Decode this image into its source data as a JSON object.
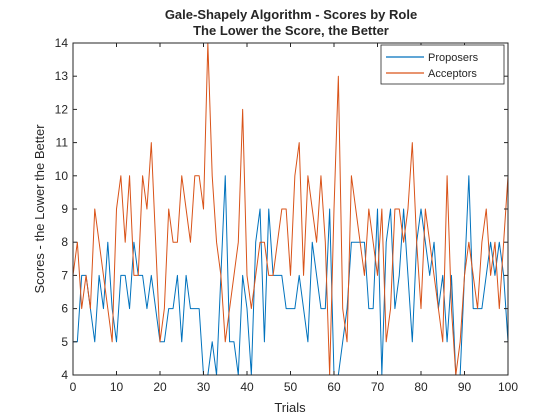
{
  "chart_data": {
    "type": "line",
    "title": "Gale-Shapely Algorithm - Scores by Role",
    "subtitle": "The Lower the Score, the Better",
    "xlabel": "Trials",
    "ylabel": "Scores - the Lower the Better",
    "xlim": [
      0,
      100
    ],
    "ylim": [
      4,
      14
    ],
    "xticks": [
      0,
      10,
      20,
      30,
      40,
      50,
      60,
      70,
      80,
      90,
      100
    ],
    "yticks": [
      4,
      5,
      6,
      7,
      8,
      9,
      10,
      11,
      12,
      13,
      14
    ],
    "grid": false,
    "legend_position": "top-right",
    "series": [
      {
        "name": "Proposers",
        "color": "#0072BD",
        "values": [
          5,
          5,
          7,
          7,
          6,
          5,
          7,
          6,
          8,
          6,
          5,
          7,
          7,
          6,
          8,
          7,
          7,
          6,
          7,
          6,
          5,
          5,
          6,
          6,
          7,
          5,
          7,
          6,
          6,
          6,
          4,
          4,
          5,
          4,
          7,
          10,
          5,
          5,
          4,
          7,
          6,
          4,
          8,
          9,
          5,
          9,
          7,
          7,
          7,
          6,
          6,
          6,
          7,
          6,
          5,
          8,
          7,
          6,
          6,
          9,
          4,
          4,
          5,
          6,
          8,
          8,
          8,
          8,
          6,
          6,
          9,
          4,
          8,
          9,
          6,
          7,
          9,
          7,
          5,
          8,
          9,
          8,
          7,
          8,
          6,
          7,
          5,
          7,
          4,
          4,
          7,
          10,
          6,
          6,
          6,
          7,
          8,
          7,
          8,
          7,
          5
        ]
      },
      {
        "name": "Acceptors",
        "color": "#D95319",
        "values": [
          7,
          8,
          6,
          7,
          6,
          9,
          8,
          7,
          6,
          5,
          9,
          10,
          8,
          10,
          7,
          7,
          10,
          9,
          11,
          8,
          5,
          6,
          9,
          8,
          8,
          10,
          9,
          8,
          10,
          10,
          9,
          14,
          10,
          8,
          7,
          5,
          6,
          7,
          8,
          12,
          7,
          6,
          7,
          8,
          8,
          7,
          7,
          8,
          9,
          9,
          7,
          10,
          11,
          7,
          10,
          9,
          8,
          10,
          8,
          4,
          9,
          13,
          6,
          5,
          10,
          9,
          8,
          7,
          9,
          8,
          7,
          9,
          5,
          6,
          9,
          9,
          8,
          9,
          11,
          8,
          6,
          9,
          8,
          7,
          6,
          5,
          10,
          6,
          4,
          5,
          7,
          8,
          7,
          6,
          8,
          9,
          7,
          8,
          6,
          8,
          10
        ]
      }
    ]
  }
}
